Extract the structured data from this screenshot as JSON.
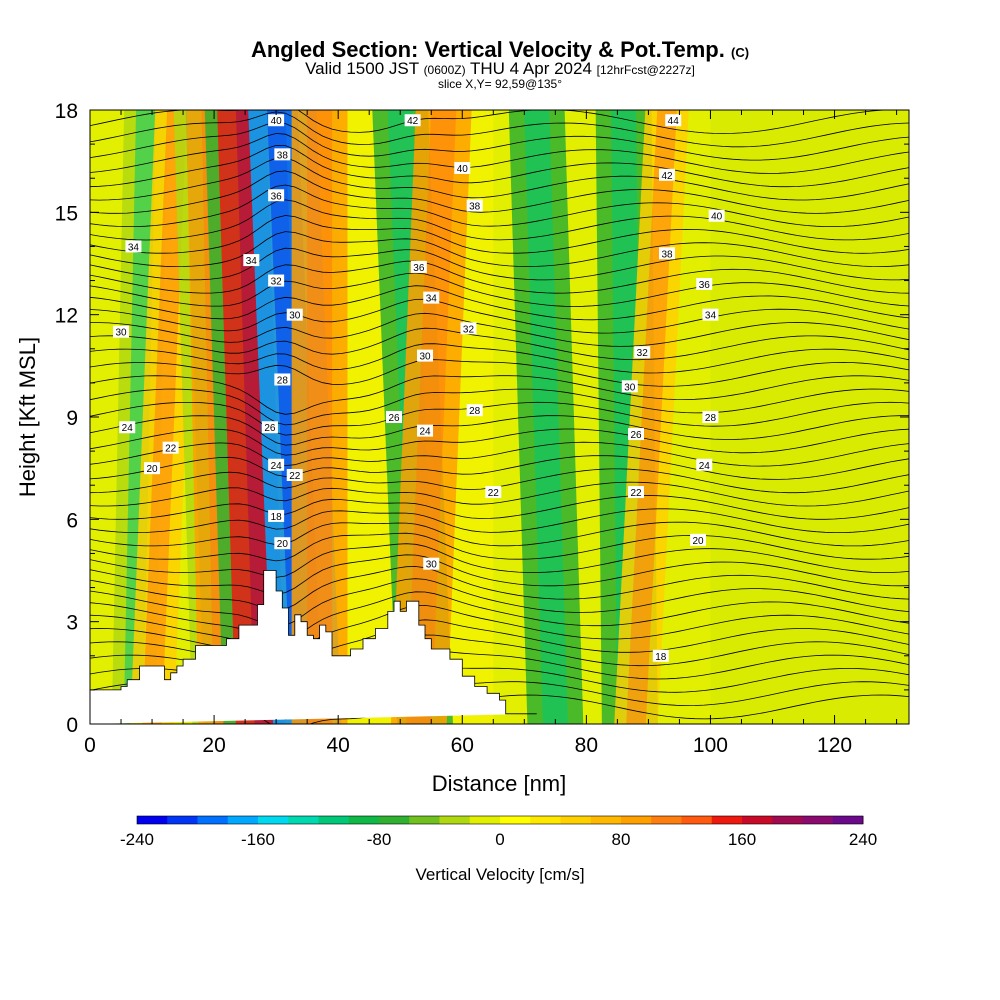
{
  "title": {
    "main": "Angled Section: Vertical Velocity & Pot.Temp.",
    "main_unit": "(C)",
    "valid_prefix": "Valid 1500 JST",
    "valid_utc": "(0600Z)",
    "valid_date": "THU 4 Apr 2024",
    "forecast": "[12hrFcst@2227z]",
    "slice": "slice X,Y= 92,59@135°"
  },
  "colorbar": {
    "label": "Vertical Velocity [cm/s]",
    "ticks": [
      "-240",
      "-160",
      "-80",
      "0",
      "80",
      "160",
      "240"
    ],
    "colors": [
      "#0000ee",
      "#0035f5",
      "#0070ff",
      "#00a8ff",
      "#00d8f0",
      "#00d8b0",
      "#00c878",
      "#10b848",
      "#30b030",
      "#70c020",
      "#b0d810",
      "#e0f000",
      "#ffff00",
      "#ffe800",
      "#ffd000",
      "#ffb800",
      "#ffa000",
      "#ff7e10",
      "#ff5a10",
      "#ee1a10",
      "#c80a28",
      "#a00a50",
      "#8a0a70",
      "#6a0a8a"
    ]
  },
  "chart_data": {
    "type": "heatmap",
    "title": "Angled Section: Vertical Velocity & Pot.Temp.",
    "xlabel": "Distance [nm]",
    "ylabel": "Height [Kft MSL]",
    "xlim": [
      0,
      132
    ],
    "ylim": [
      0,
      18
    ],
    "xticks": [
      0,
      20,
      40,
      60,
      80,
      100,
      120
    ],
    "yticks": [
      0,
      3,
      6,
      9,
      12,
      15,
      18
    ],
    "colorbar_range": [
      -240,
      240
    ],
    "colorbar_step": 20,
    "background_field": "weak updraft (0 to 40 cm/s) with alternating tilted bands",
    "bands": [
      {
        "x_bottom": 7,
        "x_top": 9,
        "type": "down",
        "strength": "weak"
      },
      {
        "x_bottom": 10,
        "x_top": 14,
        "type": "up",
        "strength": "weak"
      },
      {
        "x_bottom": 20,
        "x_top": 17,
        "type": "down",
        "strength": "weak"
      },
      {
        "x_bottom": 22,
        "x_top": 20,
        "type": "up",
        "strength": "moderate"
      },
      {
        "x_bottom": 26,
        "x_top": 23,
        "type": "down",
        "strength": "moderate"
      },
      {
        "x_bottom": 29,
        "x_top": 26,
        "type": "up",
        "strength": "strong"
      },
      {
        "x_bottom": 35,
        "x_top": 31,
        "type": "down",
        "strength": "strong"
      },
      {
        "x_bottom": 37,
        "x_top": 37,
        "type": "up",
        "strength": "moderate"
      },
      {
        "x_bottom": 54,
        "x_top": 50,
        "type": "down",
        "strength": "moderate"
      },
      {
        "x_bottom": 53,
        "x_top": 57,
        "type": "up",
        "strength": "moderate"
      },
      {
        "x_bottom": 75,
        "x_top": 72,
        "type": "down",
        "strength": "moderate"
      },
      {
        "x_bottom": 87,
        "x_top": 86,
        "type": "down",
        "strength": "moderate"
      },
      {
        "x_bottom": 88,
        "x_top": 93,
        "type": "up",
        "strength": "weak"
      }
    ],
    "terrain": {
      "x": [
        0,
        5,
        5,
        6,
        6,
        8,
        8,
        12,
        12,
        13,
        13,
        14,
        14,
        15,
        15,
        17,
        17,
        22,
        22,
        24,
        24,
        27,
        27,
        28,
        28,
        30,
        30,
        31,
        31,
        32,
        32,
        33,
        33,
        34,
        34,
        35,
        35,
        36,
        36,
        37,
        37,
        38,
        38,
        39,
        39,
        42,
        42,
        44,
        44,
        46,
        46,
        48,
        48,
        49,
        49,
        50,
        50,
        51,
        51,
        53,
        53,
        54,
        54,
        55,
        55,
        58,
        58,
        60,
        60,
        62,
        62,
        64,
        64,
        66,
        66,
        67,
        67,
        72,
        72,
        132
      ],
      "top": [
        1.0,
        1.0,
        1.1,
        1.1,
        1.3,
        1.3,
        1.7,
        1.7,
        1.3,
        1.3,
        1.5,
        1.5,
        1.7,
        1.7,
        1.9,
        1.9,
        2.3,
        2.3,
        2.5,
        2.5,
        2.9,
        2.9,
        3.5,
        3.5,
        4.5,
        4.5,
        3.9,
        3.9,
        3.4,
        3.4,
        2.6,
        2.6,
        3.2,
        3.2,
        3.0,
        3.0,
        2.6,
        2.6,
        2.5,
        2.5,
        2.9,
        2.9,
        2.7,
        2.7,
        2.0,
        2.0,
        2.2,
        2.2,
        2.5,
        2.5,
        2.8,
        2.8,
        3.3,
        3.3,
        3.6,
        3.6,
        3.3,
        3.3,
        3.6,
        3.6,
        2.9,
        2.9,
        2.5,
        2.5,
        2.2,
        2.2,
        1.9,
        1.9,
        1.4,
        1.4,
        1.1,
        1.1,
        0.9,
        0.9,
        0.7,
        0.7,
        0.3,
        0.3,
        0.3
      ]
    },
    "isentrope_labels": [
      {
        "x": 30,
        "y": 17.7,
        "text": "40"
      },
      {
        "x": 31,
        "y": 16.7,
        "text": "38"
      },
      {
        "x": 30,
        "y": 15.5,
        "text": "36"
      },
      {
        "x": 26,
        "y": 13.6,
        "text": "34"
      },
      {
        "x": 30,
        "y": 13.0,
        "text": "32"
      },
      {
        "x": 33,
        "y": 12.0,
        "text": "30"
      },
      {
        "x": 31,
        "y": 10.1,
        "text": "28"
      },
      {
        "x": 29,
        "y": 8.7,
        "text": "26"
      },
      {
        "x": 30,
        "y": 7.6,
        "text": "24"
      },
      {
        "x": 33,
        "y": 7.3,
        "text": "22"
      },
      {
        "x": 30,
        "y": 6.1,
        "text": "18"
      },
      {
        "x": 31,
        "y": 5.3,
        "text": "20"
      },
      {
        "x": 7,
        "y": 14.0,
        "text": "34"
      },
      {
        "x": 5,
        "y": 11.5,
        "text": "30"
      },
      {
        "x": 6,
        "y": 8.7,
        "text": "24"
      },
      {
        "x": 13,
        "y": 8.1,
        "text": "22"
      },
      {
        "x": 10,
        "y": 7.5,
        "text": "20"
      },
      {
        "x": 52,
        "y": 17.7,
        "text": "42"
      },
      {
        "x": 60,
        "y": 16.3,
        "text": "40"
      },
      {
        "x": 62,
        "y": 15.2,
        "text": "38"
      },
      {
        "x": 53,
        "y": 13.4,
        "text": "36"
      },
      {
        "x": 55,
        "y": 12.5,
        "text": "34"
      },
      {
        "x": 61,
        "y": 11.6,
        "text": "32"
      },
      {
        "x": 54,
        "y": 10.8,
        "text": "30"
      },
      {
        "x": 49,
        "y": 9.0,
        "text": "26"
      },
      {
        "x": 62,
        "y": 9.2,
        "text": "28"
      },
      {
        "x": 54,
        "y": 8.6,
        "text": "24"
      },
      {
        "x": 65,
        "y": 6.8,
        "text": "22"
      },
      {
        "x": 55,
        "y": 4.7,
        "text": "30"
      },
      {
        "x": 94,
        "y": 17.7,
        "text": "44"
      },
      {
        "x": 93,
        "y": 16.1,
        "text": "42"
      },
      {
        "x": 101,
        "y": 14.9,
        "text": "40"
      },
      {
        "x": 93,
        "y": 13.8,
        "text": "38"
      },
      {
        "x": 99,
        "y": 12.9,
        "text": "36"
      },
      {
        "x": 100,
        "y": 12.0,
        "text": "34"
      },
      {
        "x": 89,
        "y": 10.9,
        "text": "32"
      },
      {
        "x": 87,
        "y": 9.9,
        "text": "30"
      },
      {
        "x": 100,
        "y": 9.0,
        "text": "28"
      },
      {
        "x": 88,
        "y": 8.5,
        "text": "26"
      },
      {
        "x": 99,
        "y": 7.6,
        "text": "24"
      },
      {
        "x": 88,
        "y": 6.8,
        "text": "22"
      },
      {
        "x": 98,
        "y": 5.4,
        "text": "20"
      },
      {
        "x": 92,
        "y": 2.0,
        "text": "18"
      }
    ]
  }
}
